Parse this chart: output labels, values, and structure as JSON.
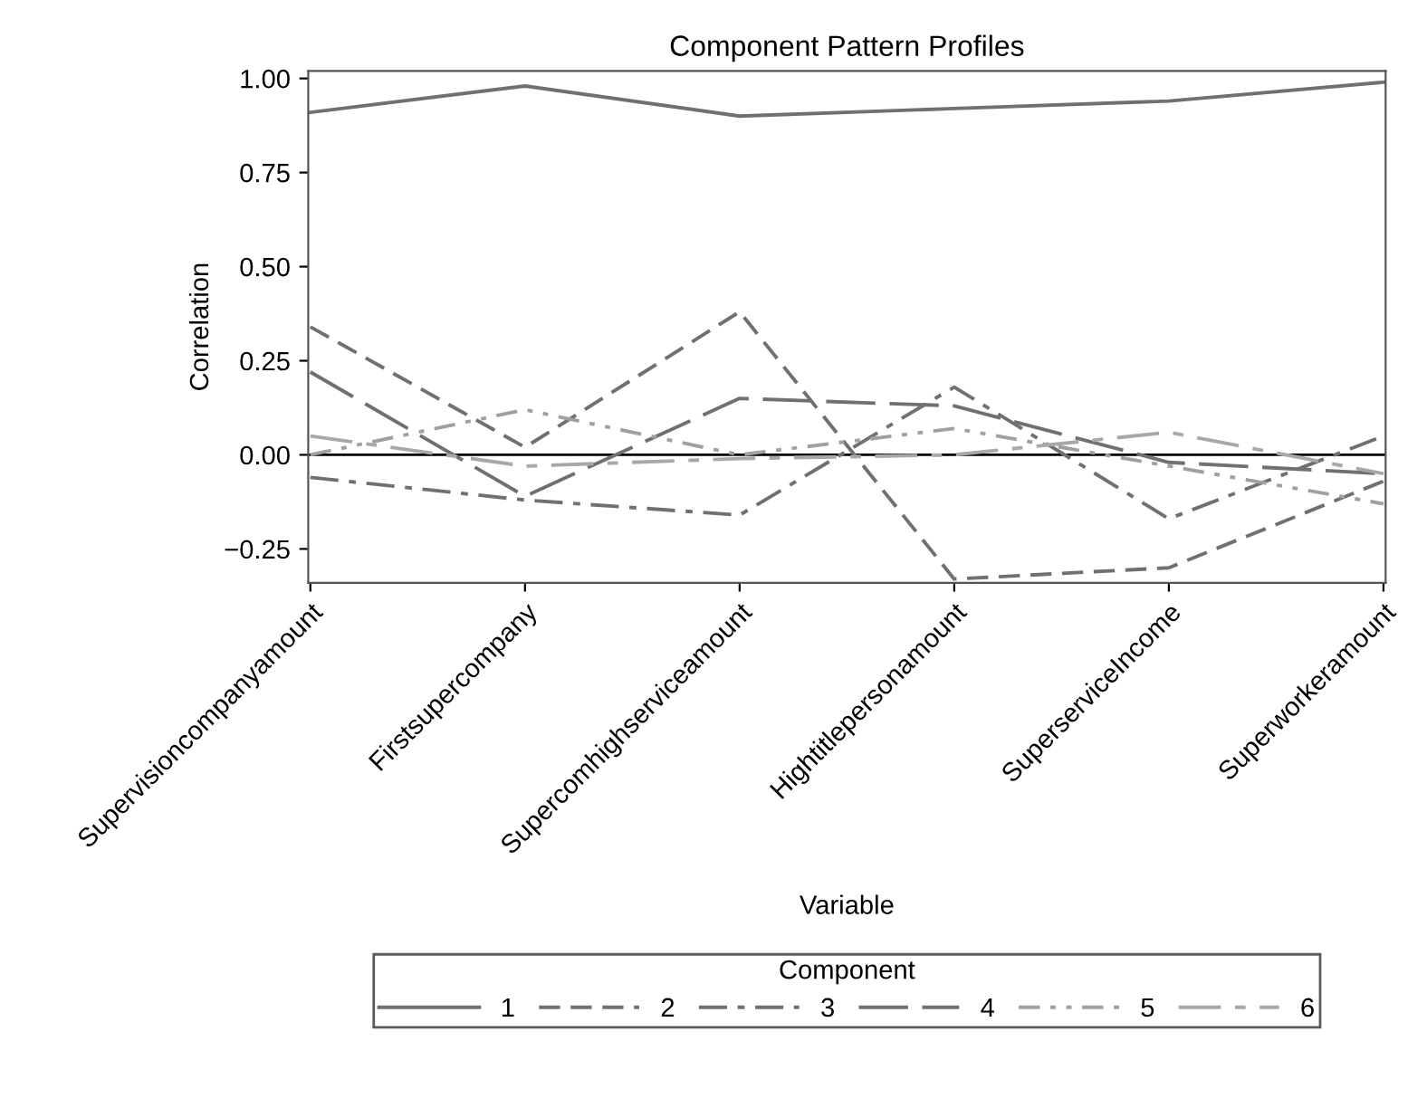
{
  "chart_data": {
    "type": "line",
    "title": "Component Pattern Profiles",
    "xlabel": "Variable",
    "ylabel": "Correlation",
    "legend_title": "Component",
    "legend": "bottom",
    "grid": false,
    "marker": "none",
    "categories": [
      "Supervisioncompanyamount",
      "Firstsupercompany",
      "Supercomhighserviceamount",
      "Hightitlepersonamount",
      "SuperserviceIncome",
      "Superworkeramount"
    ],
    "ylim": [
      -0.34,
      1.02
    ],
    "yticks": [
      {
        "value": -0.25,
        "label": "−0.25"
      },
      {
        "value": 0,
        "label": "0.00"
      },
      {
        "value": 0.25,
        "label": "0.25"
      },
      {
        "value": 0.5,
        "label": "0.50"
      },
      {
        "value": 0.75,
        "label": "0.75"
      },
      {
        "value": 1,
        "label": "1.00"
      }
    ],
    "ref_lines": [
      {
        "axis": "y",
        "value": 0,
        "color": "#000000",
        "line_style": "solid"
      }
    ],
    "series": [
      {
        "name": "1",
        "color": "#707070",
        "line_style": "solid",
        "values": [
          0.91,
          0.98,
          0.9,
          0.92,
          0.94,
          0.99
        ]
      },
      {
        "name": "2",
        "color": "#707070",
        "line_style": "dashed",
        "values": [
          0.34,
          0.02,
          0.38,
          -0.33,
          -0.3,
          -0.07
        ]
      },
      {
        "name": "3",
        "color": "#707070",
        "line_style": "dashdot",
        "values": [
          -0.06,
          -0.12,
          -0.16,
          0.18,
          -0.17,
          0.05
        ]
      },
      {
        "name": "4",
        "color": "#707070",
        "line_style": "longdash",
        "values": [
          0.22,
          -0.11,
          0.15,
          0.13,
          -0.02,
          -0.05
        ]
      },
      {
        "name": "5",
        "color": "#a0a0a0",
        "line_style": "dashdotdot",
        "values": [
          0.0,
          0.12,
          0.0,
          0.07,
          -0.03,
          -0.13
        ]
      },
      {
        "name": "6",
        "color": "#a8a8a8",
        "line_style": "longshort",
        "values": [
          0.05,
          -0.03,
          -0.01,
          0.0,
          0.06,
          -0.05
        ]
      }
    ]
  }
}
